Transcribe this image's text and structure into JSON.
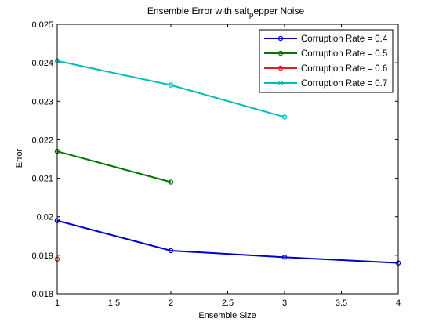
{
  "chart_data": {
    "type": "line",
    "title": "Ensemble Error with salt",
    "title_subscript": "p",
    "title_rest": "epper Noise",
    "xlabel": "Ensemble Size",
    "ylabel": "Error",
    "xlim": [
      1,
      4
    ],
    "ylim": [
      0.018,
      0.025
    ],
    "xticks": [
      "1",
      "1.5",
      "2",
      "2.5",
      "3",
      "3.5",
      "4"
    ],
    "yticks": [
      "0.018",
      "0.019",
      "0.02",
      "0.021",
      "0.022",
      "0.023",
      "0.024",
      "0.025"
    ],
    "legend_position": "top-right",
    "grid": false,
    "series": [
      {
        "name": "Corruption Rate = 0.4",
        "color": "#0000cc",
        "x": [
          1,
          2,
          3,
          4
        ],
        "y": [
          0.0199,
          0.01912,
          0.01895,
          0.0188
        ]
      },
      {
        "name": "Corruption Rate = 0.5",
        "color": "#007700",
        "x": [
          1,
          2
        ],
        "y": [
          0.0217,
          0.0209
        ]
      },
      {
        "name": "Corruption Rate = 0.6",
        "color": "#dd2222",
        "x": [
          1
        ],
        "y": [
          0.0189
        ]
      },
      {
        "name": "Corruption Rate = 0.7",
        "color": "#00bbbb",
        "x": [
          1,
          2,
          3
        ],
        "y": [
          0.02405,
          0.02342,
          0.02259
        ]
      }
    ]
  }
}
